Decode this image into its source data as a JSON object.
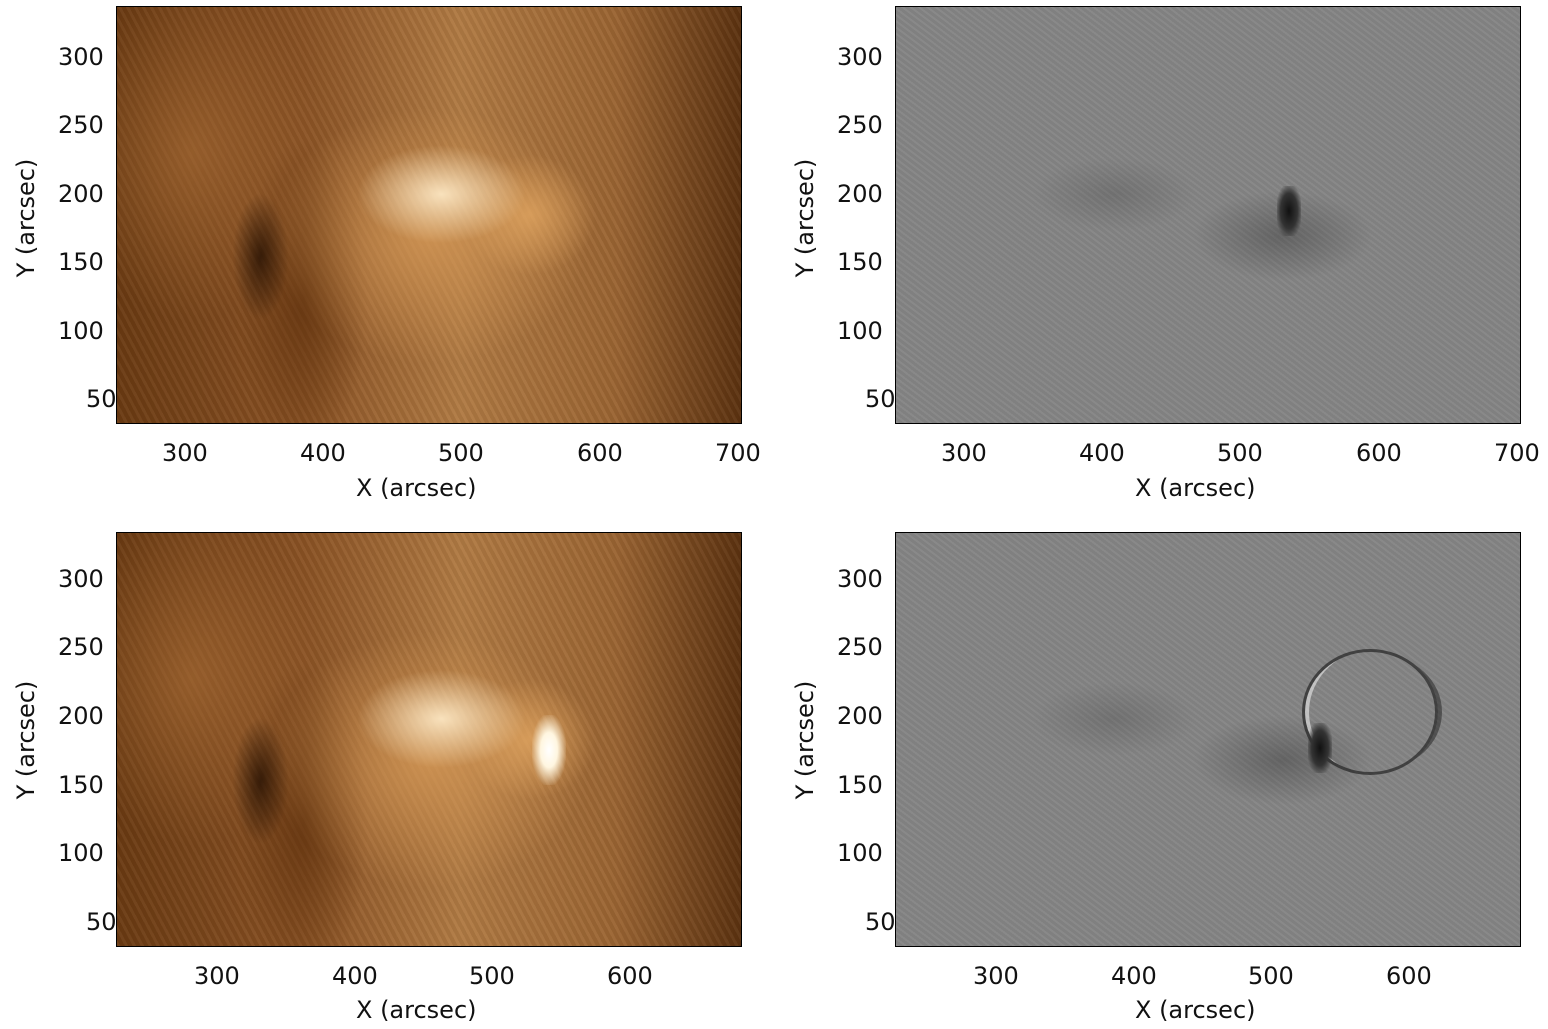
{
  "panels": [
    {
      "name": "top-left",
      "image": "aia-171-top",
      "xlabel": "X (arcsec)",
      "ylabel": "Y (arcsec)",
      "xticks": [
        "300",
        "400",
        "500",
        "600",
        "700"
      ],
      "yticks": [
        "300",
        "250",
        "200",
        "150",
        "100",
        "50"
      ]
    },
    {
      "name": "top-right",
      "image": "difference-top",
      "xlabel": "X (arcsec)",
      "ylabel": "Y (arcsec)",
      "xticks": [
        "300",
        "400",
        "500",
        "600",
        "700"
      ],
      "yticks": [
        "300",
        "250",
        "200",
        "150",
        "100",
        "50"
      ]
    },
    {
      "name": "bottom-left",
      "image": "aia-171-bottom",
      "xlabel": "X (arcsec)",
      "ylabel": "Y (arcsec)",
      "xticks": [
        "300",
        "400",
        "500",
        "600"
      ],
      "yticks": [
        "300",
        "250",
        "200",
        "150",
        "100",
        "50"
      ]
    },
    {
      "name": "bottom-right",
      "image": "difference-bottom",
      "xlabel": "X (arcsec)",
      "ylabel": "Y (arcsec)",
      "xticks": [
        "300",
        "400",
        "500",
        "600"
      ],
      "yticks": [
        "300",
        "250",
        "200",
        "150",
        "100",
        "50"
      ]
    }
  ]
}
